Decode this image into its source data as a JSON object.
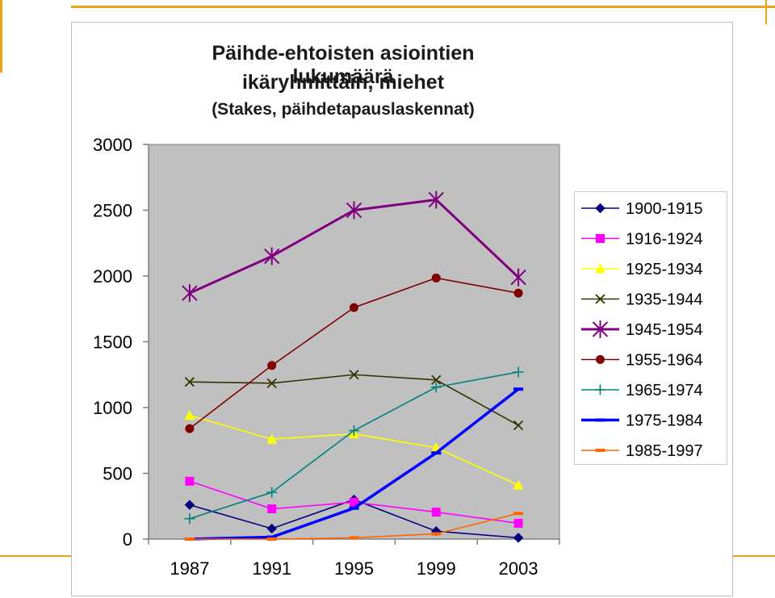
{
  "chart_data": {
    "type": "line",
    "title": "Päihde-ehtoisten asiointien lukumäärä",
    "title_line2": "ikäryhmittäin, miehet",
    "subtitle": "(Stakes, päihdetapauslaskennat)",
    "xlabel": "",
    "ylabel": "",
    "categories": [
      "1987",
      "1991",
      "1995",
      "1999",
      "2003"
    ],
    "ylim": [
      0,
      3000
    ],
    "yticks": [
      "0",
      "500",
      "1000",
      "1500",
      "2000",
      "2500",
      "3000"
    ],
    "grid": false,
    "legend_position": "right",
    "plot_background": "#c0c0c0",
    "series": [
      {
        "name": "1900-1915",
        "values": [
          260,
          80,
          300,
          60,
          10
        ],
        "color": "#000080",
        "marker": "diamond"
      },
      {
        "name": "1916-1924",
        "values": [
          440,
          230,
          280,
          205,
          120
        ],
        "color": "#ff00ff",
        "marker": "square"
      },
      {
        "name": "1925-1934",
        "values": [
          940,
          760,
          800,
          695,
          410
        ],
        "color": "#ffff00",
        "marker": "triangle"
      },
      {
        "name": "1935-1944",
        "values": [
          1195,
          1185,
          1250,
          1210,
          865
        ],
        "color": "#333300",
        "marker": "x"
      },
      {
        "name": "1945-1954",
        "values": [
          1870,
          2150,
          2500,
          2580,
          1990
        ],
        "color": "#800080",
        "marker": "star"
      },
      {
        "name": "1955-1964",
        "values": [
          840,
          1320,
          1760,
          1985,
          1870
        ],
        "color": "#800000",
        "marker": "circle"
      },
      {
        "name": "1965-1974",
        "values": [
          155,
          355,
          825,
          1155,
          1270
        ],
        "color": "#008080",
        "marker": "plus"
      },
      {
        "name": "1975-1984",
        "values": [
          0,
          15,
          235,
          655,
          1140
        ],
        "color": "#0000ff",
        "marker": "dash"
      },
      {
        "name": "1985-1997",
        "values": [
          0,
          0,
          10,
          40,
          195
        ],
        "color": "#ff6600",
        "marker": "dash"
      }
    ]
  }
}
